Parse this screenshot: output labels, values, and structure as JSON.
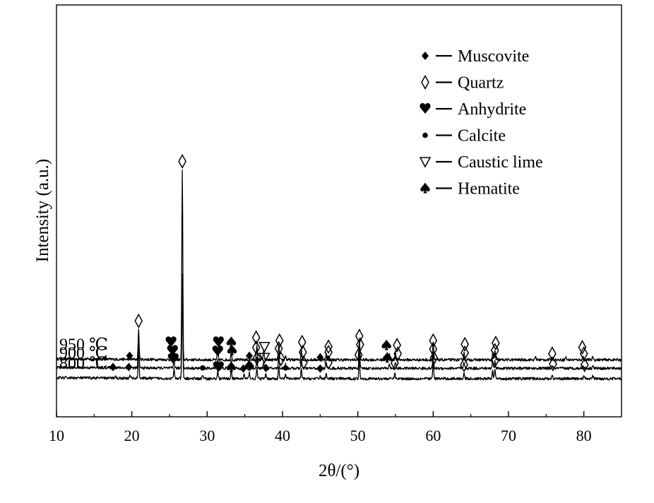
{
  "chart_data": {
    "type": "line",
    "xlabel": "2θ/(°)",
    "ylabel": "Intensity (a.u.)",
    "xlim": [
      10,
      85
    ],
    "xticks": [
      10,
      20,
      30,
      40,
      50,
      60,
      70,
      80
    ],
    "y_ticks_shown": false,
    "grid": false,
    "legend_position": "top-right",
    "legend": [
      {
        "symbol": "muscovite",
        "glyph": "♦",
        "label": "Muscovite"
      },
      {
        "symbol": "quartz",
        "glyph": "◊",
        "label": "Quartz"
      },
      {
        "symbol": "anhydrite",
        "glyph": "♥",
        "label": "Anhydrite"
      },
      {
        "symbol": "calcite",
        "glyph": "●",
        "label": "Calcite"
      },
      {
        "symbol": "caustic-lime",
        "glyph": "▽",
        "label": "Caustic lime"
      },
      {
        "symbol": "hematite",
        "glyph": "♠",
        "label": "Hematite"
      }
    ],
    "series": [
      {
        "name": "950 ℃",
        "baseline": 0.62,
        "peaks": [
          [
            20.9,
            1.0
          ],
          [
            25.6,
            0.3
          ],
          [
            26.7,
            6.2
          ],
          [
            31.4,
            0.35
          ],
          [
            33.2,
            0.25
          ],
          [
            36.6,
            0.45
          ],
          [
            37.5,
            0.3
          ],
          [
            39.5,
            0.5
          ],
          [
            40.4,
            0.15
          ],
          [
            42.5,
            0.35
          ],
          [
            45.8,
            0.2
          ],
          [
            50.2,
            0.65
          ],
          [
            54.2,
            0.2
          ],
          [
            55.0,
            0.25
          ],
          [
            60.0,
            0.55
          ],
          [
            64.1,
            0.25
          ],
          [
            67.9,
            0.25
          ],
          [
            68.2,
            0.3
          ],
          [
            73.6,
            0.1
          ],
          [
            75.8,
            0.1
          ],
          [
            77.6,
            0.1
          ],
          [
            79.9,
            0.12
          ],
          [
            81.2,
            0.12
          ]
        ],
        "markers": [
          {
            "x": 26.7,
            "y": 6.3,
            "symbol": "quartz"
          },
          {
            "x": 20.9,
            "y": 1.05,
            "symbol": "quartz"
          },
          {
            "x": 25.2,
            "y": 0.35,
            "symbol": "anhydrite"
          },
          {
            "x": 31.5,
            "y": 0.35,
            "symbol": "anhydrite"
          },
          {
            "x": 33.2,
            "y": 0.35,
            "symbol": "hematite"
          },
          {
            "x": 36.5,
            "y": 0.5,
            "symbol": "quartz"
          },
          {
            "x": 37.6,
            "y": 0.2,
            "symbol": "caustic-lime"
          },
          {
            "x": 39.6,
            "y": 0.4,
            "symbol": "quartz"
          },
          {
            "x": 42.6,
            "y": 0.35,
            "symbol": "quartz"
          },
          {
            "x": 46.1,
            "y": 0.2,
            "symbol": "quartz"
          },
          {
            "x": 50.2,
            "y": 0.55,
            "symbol": "quartz"
          },
          {
            "x": 53.8,
            "y": 0.25,
            "symbol": "hematite"
          },
          {
            "x": 55.2,
            "y": 0.25,
            "symbol": "quartz"
          },
          {
            "x": 60.0,
            "y": 0.4,
            "symbol": "quartz"
          },
          {
            "x": 64.2,
            "y": 0.28,
            "symbol": "quartz"
          },
          {
            "x": 68.3,
            "y": 0.32,
            "symbol": "quartz"
          },
          {
            "x": 79.8,
            "y": 0.18,
            "symbol": "quartz"
          }
        ]
      },
      {
        "name": "900 ℃",
        "baseline": 0.34,
        "peaks": [
          [
            19.8,
            0.06
          ],
          [
            20.9,
            0.95
          ],
          [
            25.6,
            0.3
          ],
          [
            26.7,
            3.1
          ],
          [
            31.4,
            0.3
          ],
          [
            33.2,
            0.25
          ],
          [
            35.5,
            0.1
          ],
          [
            36.6,
            0.4
          ],
          [
            37.5,
            0.2
          ],
          [
            39.5,
            0.45
          ],
          [
            40.4,
            0.15
          ],
          [
            42.5,
            0.3
          ],
          [
            45.8,
            0.2
          ],
          [
            50.2,
            0.6
          ],
          [
            54.2,
            0.15
          ],
          [
            55.0,
            0.2
          ],
          [
            60.0,
            0.5
          ],
          [
            64.1,
            0.2
          ],
          [
            67.9,
            0.25
          ],
          [
            68.2,
            0.28
          ],
          [
            75.8,
            0.1
          ],
          [
            79.9,
            0.1
          ],
          [
            81.2,
            0.12
          ]
        ],
        "markers": [
          {
            "x": 19.7,
            "y": 0.18,
            "symbol": "muscovite"
          },
          {
            "x": 25.4,
            "y": 0.35,
            "symbol": "anhydrite"
          },
          {
            "x": 31.4,
            "y": 0.33,
            "symbol": "anhydrite"
          },
          {
            "x": 33.3,
            "y": 0.36,
            "symbol": "hematite"
          },
          {
            "x": 35.6,
            "y": 0.18,
            "symbol": "muscovite"
          },
          {
            "x": 36.5,
            "y": 0.45,
            "symbol": "quartz"
          },
          {
            "x": 37.6,
            "y": 0.12,
            "symbol": "caustic-lime"
          },
          {
            "x": 39.5,
            "y": 0.42,
            "symbol": "quartz"
          },
          {
            "x": 42.7,
            "y": 0.3,
            "symbol": "quartz"
          },
          {
            "x": 45.0,
            "y": 0.13,
            "symbol": "muscovite"
          },
          {
            "x": 46.1,
            "y": 0.3,
            "symbol": "quartz"
          },
          {
            "x": 50.3,
            "y": 0.55,
            "symbol": "quartz"
          },
          {
            "x": 53.9,
            "y": 0.12,
            "symbol": "hematite"
          },
          {
            "x": 55.3,
            "y": 0.25,
            "symbol": "quartz"
          },
          {
            "x": 60.0,
            "y": 0.4,
            "symbol": "quartz"
          },
          {
            "x": 64.2,
            "y": 0.28,
            "symbol": "quartz"
          },
          {
            "x": 68.2,
            "y": 0.36,
            "symbol": "quartz"
          },
          {
            "x": 75.8,
            "y": 0.25,
            "symbol": "quartz"
          },
          {
            "x": 80.0,
            "y": 0.25,
            "symbol": "quartz"
          }
        ]
      },
      {
        "name": "800 ℃",
        "baseline": 0.0,
        "peaks": [
          [
            17.8,
            0.07
          ],
          [
            19.8,
            0.1
          ],
          [
            20.9,
            1.1
          ],
          [
            25.6,
            0.3
          ],
          [
            26.7,
            3.3
          ],
          [
            29.4,
            0.12
          ],
          [
            31.4,
            0.25
          ],
          [
            33.2,
            0.35
          ],
          [
            34.9,
            0.15
          ],
          [
            35.6,
            0.2
          ],
          [
            36.6,
            0.35
          ],
          [
            37.8,
            0.15
          ],
          [
            39.5,
            0.35
          ],
          [
            40.4,
            0.15
          ],
          [
            42.5,
            0.3
          ],
          [
            45.0,
            0.1
          ],
          [
            45.8,
            0.2
          ],
          [
            50.2,
            0.7
          ],
          [
            54.9,
            0.2
          ],
          [
            60.0,
            0.55
          ],
          [
            64.1,
            0.2
          ],
          [
            67.9,
            0.25
          ],
          [
            68.2,
            0.3
          ],
          [
            75.8,
            0.1
          ],
          [
            80.0,
            0.12
          ],
          [
            81.2,
            0.1
          ]
        ],
        "markers": [
          {
            "x": 17.5,
            "y": 0.15,
            "symbol": "muscovite"
          },
          {
            "x": 19.6,
            "y": 0.15,
            "symbol": "muscovite"
          },
          {
            "x": 25.5,
            "y": 0.42,
            "symbol": "anhydrite"
          },
          {
            "x": 29.4,
            "y": 0.12,
            "symbol": "calcite"
          },
          {
            "x": 31.5,
            "y": 0.15,
            "symbol": "anhydrite"
          },
          {
            "x": 33.2,
            "y": 0.15,
            "symbol": "hematite"
          },
          {
            "x": 34.8,
            "y": 0.1,
            "symbol": "muscovite"
          },
          {
            "x": 35.6,
            "y": 0.2,
            "symbol": "hematite"
          },
          {
            "x": 36.6,
            "y": 0.45,
            "symbol": "quartz"
          },
          {
            "x": 37.8,
            "y": 0.12,
            "symbol": "muscovite"
          },
          {
            "x": 39.8,
            "y": 0.42,
            "symbol": "quartz"
          },
          {
            "x": 40.4,
            "y": 0.12,
            "symbol": "calcite"
          },
          {
            "x": 42.8,
            "y": 0.3,
            "symbol": "quartz"
          },
          {
            "x": 45.0,
            "y": 0.1,
            "symbol": "muscovite"
          },
          {
            "x": 46.1,
            "y": 0.3,
            "symbol": "quartz"
          },
          {
            "x": 50.1,
            "y": 0.55,
            "symbol": "quartz"
          },
          {
            "x": 54.9,
            "y": 0.28,
            "symbol": "quartz"
          },
          {
            "x": 60.1,
            "y": 0.45,
            "symbol": "quartz"
          },
          {
            "x": 64.1,
            "y": 0.22,
            "symbol": "quartz"
          },
          {
            "x": 68.2,
            "y": 0.36,
            "symbol": "quartz"
          },
          {
            "x": 75.9,
            "y": 0.25,
            "symbol": "quartz"
          },
          {
            "x": 80.1,
            "y": 0.22,
            "symbol": "quartz"
          }
        ]
      }
    ]
  }
}
